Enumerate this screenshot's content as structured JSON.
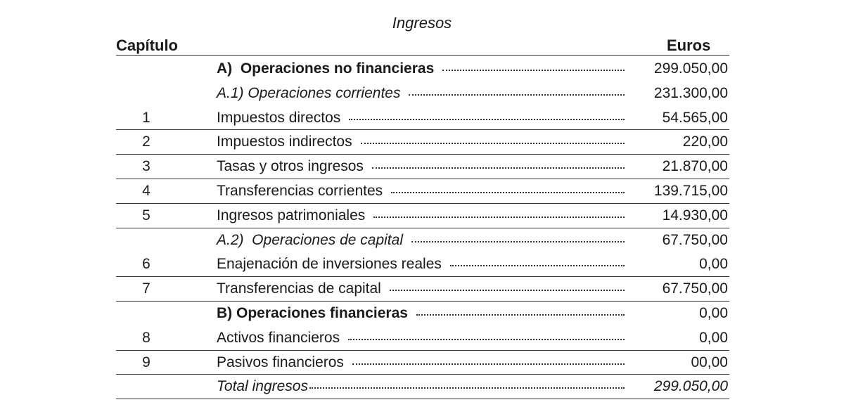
{
  "title": "Ingresos",
  "header": {
    "chapter": "Capítulo",
    "amount": "Euros"
  },
  "rows": [
    {
      "concept": "A)  Operaciones no financieras",
      "amount": "299.050,00"
    },
    {
      "concept": "A.1) Operaciones corrientes",
      "amount": "231.300,00"
    },
    {
      "chapter": "1",
      "concept": "Impuestos directos",
      "amount": "54.565,00"
    },
    {
      "chapter": "2",
      "concept": "Impuestos indirectos",
      "amount": "220,00"
    },
    {
      "chapter": "3",
      "concept": "Tasas y otros ingresos",
      "amount": "21.870,00"
    },
    {
      "chapter": "4",
      "concept": "Transferencias corrientes",
      "amount": "139.715,00"
    },
    {
      "chapter": "5",
      "concept": "Ingresos patrimoniales",
      "amount": "14.930,00"
    },
    {
      "concept": "A.2)  Operaciones de capital",
      "amount": "67.750,00"
    },
    {
      "chapter": "6",
      "concept": "Enajenación de inversiones reales",
      "amount": "0,00"
    },
    {
      "chapter": "7",
      "concept": "Transferencias de capital",
      "amount": "67.750,00"
    },
    {
      "concept": "B) Operaciones financieras",
      "amount": "0,00"
    },
    {
      "chapter": "8",
      "concept": "Activos financieros",
      "amount": "0,00"
    },
    {
      "chapter": "9",
      "concept": "Pasivos financieros",
      "amount": "00,00"
    },
    {
      "concept": "Total ingresos",
      "amount": "299.050,00"
    }
  ]
}
